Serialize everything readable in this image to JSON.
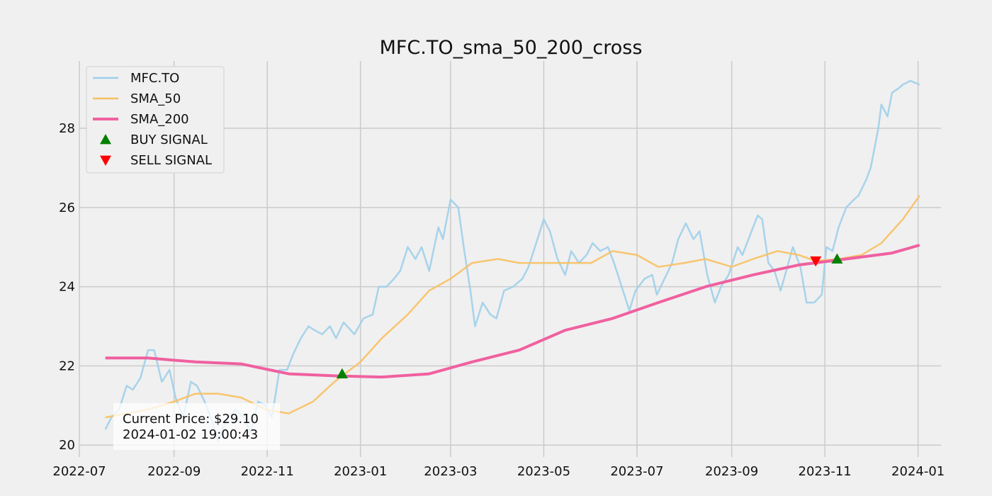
{
  "chart_data": {
    "type": "line",
    "title": "MFC.TO_sma_50_200_cross",
    "xlabel": "",
    "ylabel": "",
    "xlim": [
      "2022-07-01",
      "2024-01-16"
    ],
    "ylim": [
      19.7,
      29.7
    ],
    "x_ticks": [
      "2022-07",
      "2022-09",
      "2022-11",
      "2023-01",
      "2023-03",
      "2023-05",
      "2023-07",
      "2023-09",
      "2023-11",
      "2024-01"
    ],
    "y_ticks": [
      20,
      22,
      24,
      26,
      28
    ],
    "grid": true,
    "legend_position": "top-left",
    "colors": {
      "price": "#9ecfea",
      "sma50": "#f8c060",
      "sma200": "#f060a0",
      "buy": "#008000",
      "sell": "#ff0000",
      "background": "#f0f0f0",
      "grid": "#cbcbcb"
    },
    "series": [
      {
        "name": "MFC.TO",
        "points": [
          [
            "2022-07-18",
            20.4
          ],
          [
            "2022-07-22",
            20.7
          ],
          [
            "2022-07-27",
            20.9
          ],
          [
            "2022-08-01",
            21.5
          ],
          [
            "2022-08-05",
            21.4
          ],
          [
            "2022-08-10",
            21.7
          ],
          [
            "2022-08-15",
            22.4
          ],
          [
            "2022-08-19",
            22.4
          ],
          [
            "2022-08-24",
            21.6
          ],
          [
            "2022-08-29",
            21.9
          ],
          [
            "2022-09-02",
            21.2
          ],
          [
            "2022-09-07",
            20.7
          ],
          [
            "2022-09-12",
            21.6
          ],
          [
            "2022-09-16",
            21.5
          ],
          [
            "2022-09-21",
            21.1
          ],
          [
            "2022-09-26",
            20.6
          ],
          [
            "2022-09-30",
            20.1
          ],
          [
            "2022-10-05",
            20.6
          ],
          [
            "2022-10-11",
            20.9
          ],
          [
            "2022-10-17",
            20.7
          ],
          [
            "2022-10-21",
            20.3
          ],
          [
            "2022-10-26",
            21.1
          ],
          [
            "2022-10-31",
            21.0
          ],
          [
            "2022-11-04",
            20.7
          ],
          [
            "2022-11-09",
            21.9
          ],
          [
            "2022-11-14",
            21.9
          ],
          [
            "2022-11-18",
            22.3
          ],
          [
            "2022-11-23",
            22.7
          ],
          [
            "2022-11-28",
            23.0
          ],
          [
            "2022-12-02",
            22.9
          ],
          [
            "2022-12-07",
            22.8
          ],
          [
            "2022-12-12",
            23.0
          ],
          [
            "2022-12-16",
            22.7
          ],
          [
            "2022-12-21",
            23.1
          ],
          [
            "2022-12-28",
            22.8
          ],
          [
            "2023-01-03",
            23.2
          ],
          [
            "2023-01-09",
            23.3
          ],
          [
            "2023-01-13",
            24.0
          ],
          [
            "2023-01-18",
            24.0
          ],
          [
            "2023-01-23",
            24.2
          ],
          [
            "2023-01-27",
            24.4
          ],
          [
            "2023-02-01",
            25.0
          ],
          [
            "2023-02-06",
            24.7
          ],
          [
            "2023-02-10",
            25.0
          ],
          [
            "2023-02-15",
            24.4
          ],
          [
            "2023-02-21",
            25.5
          ],
          [
            "2023-02-24",
            25.2
          ],
          [
            "2023-03-01",
            26.2
          ],
          [
            "2023-03-06",
            26.0
          ],
          [
            "2023-03-10",
            24.9
          ],
          [
            "2023-03-14",
            23.9
          ],
          [
            "2023-03-17",
            23.0
          ],
          [
            "2023-03-22",
            23.6
          ],
          [
            "2023-03-27",
            23.3
          ],
          [
            "2023-03-31",
            23.2
          ],
          [
            "2023-04-05",
            23.9
          ],
          [
            "2023-04-11",
            24.0
          ],
          [
            "2023-04-17",
            24.2
          ],
          [
            "2023-04-21",
            24.5
          ],
          [
            "2023-04-26",
            25.1
          ],
          [
            "2023-05-01",
            25.7
          ],
          [
            "2023-05-05",
            25.4
          ],
          [
            "2023-05-10",
            24.7
          ],
          [
            "2023-05-15",
            24.3
          ],
          [
            "2023-05-19",
            24.9
          ],
          [
            "2023-05-24",
            24.6
          ],
          [
            "2023-05-29",
            24.8
          ],
          [
            "2023-06-02",
            25.1
          ],
          [
            "2023-06-07",
            24.9
          ],
          [
            "2023-06-12",
            25.0
          ],
          [
            "2023-06-16",
            24.6
          ],
          [
            "2023-06-21",
            24.0
          ],
          [
            "2023-06-26",
            23.4
          ],
          [
            "2023-06-30",
            23.9
          ],
          [
            "2023-07-06",
            24.2
          ],
          [
            "2023-07-11",
            24.3
          ],
          [
            "2023-07-14",
            23.8
          ],
          [
            "2023-07-19",
            24.2
          ],
          [
            "2023-07-24",
            24.6
          ],
          [
            "2023-07-28",
            25.2
          ],
          [
            "2023-08-02",
            25.6
          ],
          [
            "2023-08-07",
            25.2
          ],
          [
            "2023-08-11",
            25.4
          ],
          [
            "2023-08-16",
            24.3
          ],
          [
            "2023-08-21",
            23.6
          ],
          [
            "2023-08-25",
            24.0
          ],
          [
            "2023-08-30",
            24.3
          ],
          [
            "2023-09-05",
            25.0
          ],
          [
            "2023-09-08",
            24.8
          ],
          [
            "2023-09-13",
            25.3
          ],
          [
            "2023-09-18",
            25.8
          ],
          [
            "2023-09-21",
            25.7
          ],
          [
            "2023-09-25",
            24.6
          ],
          [
            "2023-09-29",
            24.4
          ],
          [
            "2023-10-03",
            23.9
          ],
          [
            "2023-10-06",
            24.3
          ],
          [
            "2023-10-11",
            25.0
          ],
          [
            "2023-10-16",
            24.5
          ],
          [
            "2023-10-20",
            23.6
          ],
          [
            "2023-10-25",
            23.6
          ],
          [
            "2023-10-30",
            23.8
          ],
          [
            "2023-11-02",
            25.0
          ],
          [
            "2023-11-06",
            24.9
          ],
          [
            "2023-11-10",
            25.5
          ],
          [
            "2023-11-15",
            26.0
          ],
          [
            "2023-11-20",
            26.2
          ],
          [
            "2023-11-23",
            26.3
          ],
          [
            "2023-11-28",
            26.7
          ],
          [
            "2023-12-01",
            27.0
          ],
          [
            "2023-12-06",
            28.0
          ],
          [
            "2023-12-08",
            28.6
          ],
          [
            "2023-12-12",
            28.3
          ],
          [
            "2023-12-15",
            28.9
          ],
          [
            "2023-12-19",
            29.0
          ],
          [
            "2023-12-22",
            29.1
          ],
          [
            "2023-12-27",
            29.2
          ],
          [
            "2024-01-02",
            29.1
          ]
        ]
      },
      {
        "name": "SMA_50",
        "points": [
          [
            "2022-07-18",
            20.7
          ],
          [
            "2022-08-01",
            20.8
          ],
          [
            "2022-08-15",
            20.9
          ],
          [
            "2022-09-01",
            21.1
          ],
          [
            "2022-09-15",
            21.3
          ],
          [
            "2022-09-30",
            21.3
          ],
          [
            "2022-10-15",
            21.2
          ],
          [
            "2022-10-31",
            20.9
          ],
          [
            "2022-11-15",
            20.8
          ],
          [
            "2022-12-01",
            21.1
          ],
          [
            "2022-12-15",
            21.6
          ],
          [
            "2023-01-01",
            22.1
          ],
          [
            "2023-01-15",
            22.7
          ],
          [
            "2023-02-01",
            23.3
          ],
          [
            "2023-02-15",
            23.9
          ],
          [
            "2023-03-01",
            24.2
          ],
          [
            "2023-03-15",
            24.6
          ],
          [
            "2023-04-01",
            24.7
          ],
          [
            "2023-04-15",
            24.6
          ],
          [
            "2023-05-01",
            24.6
          ],
          [
            "2023-05-15",
            24.6
          ],
          [
            "2023-06-01",
            24.6
          ],
          [
            "2023-06-15",
            24.9
          ],
          [
            "2023-07-01",
            24.8
          ],
          [
            "2023-07-15",
            24.5
          ],
          [
            "2023-08-01",
            24.6
          ],
          [
            "2023-08-15",
            24.7
          ],
          [
            "2023-09-01",
            24.5
          ],
          [
            "2023-09-15",
            24.7
          ],
          [
            "2023-10-01",
            24.9
          ],
          [
            "2023-10-15",
            24.8
          ],
          [
            "2023-10-26",
            24.65
          ],
          [
            "2023-11-10",
            24.7
          ],
          [
            "2023-11-25",
            24.8
          ],
          [
            "2023-12-08",
            25.1
          ],
          [
            "2023-12-15",
            25.4
          ],
          [
            "2023-12-22",
            25.7
          ],
          [
            "2024-01-02",
            26.3
          ]
        ]
      },
      {
        "name": "SMA_200",
        "points": [
          [
            "2022-07-18",
            22.2
          ],
          [
            "2022-08-15",
            22.2
          ],
          [
            "2022-09-15",
            22.1
          ],
          [
            "2022-10-15",
            22.05
          ],
          [
            "2022-11-15",
            21.8
          ],
          [
            "2022-12-15",
            21.75
          ],
          [
            "2023-01-15",
            21.72
          ],
          [
            "2023-02-15",
            21.8
          ],
          [
            "2023-03-15",
            22.1
          ],
          [
            "2023-04-15",
            22.4
          ],
          [
            "2023-05-15",
            22.9
          ],
          [
            "2023-06-15",
            23.2
          ],
          [
            "2023-07-15",
            23.6
          ],
          [
            "2023-08-15",
            24.0
          ],
          [
            "2023-09-15",
            24.3
          ],
          [
            "2023-10-15",
            24.55
          ],
          [
            "2023-11-15",
            24.7
          ],
          [
            "2023-12-15",
            24.85
          ],
          [
            "2024-01-02",
            25.05
          ]
        ]
      }
    ],
    "signals": [
      {
        "type": "buy",
        "name": "BUY SIGNAL",
        "x": "2022-12-20",
        "y": 21.8
      },
      {
        "type": "sell",
        "name": "SELL SIGNAL",
        "x": "2023-10-26",
        "y": 24.65
      },
      {
        "type": "buy",
        "name": "BUY SIGNAL",
        "x": "2023-11-09",
        "y": 24.7
      }
    ],
    "legend": [
      {
        "label": "MFC.TO",
        "kind": "line",
        "color": "#9ecfea"
      },
      {
        "label": "SMA_50",
        "kind": "line",
        "color": "#f8c060"
      },
      {
        "label": "SMA_200",
        "kind": "line",
        "color": "#f060a0"
      },
      {
        "label": "BUY SIGNAL",
        "kind": "buy",
        "color": "#008000"
      },
      {
        "label": "SELL SIGNAL",
        "kind": "sell",
        "color": "#ff0000"
      }
    ],
    "annotation": {
      "lines": [
        "Current Price: $29.10",
        "2024-01-02 19:00:43"
      ],
      "position": "bottom-left"
    }
  }
}
